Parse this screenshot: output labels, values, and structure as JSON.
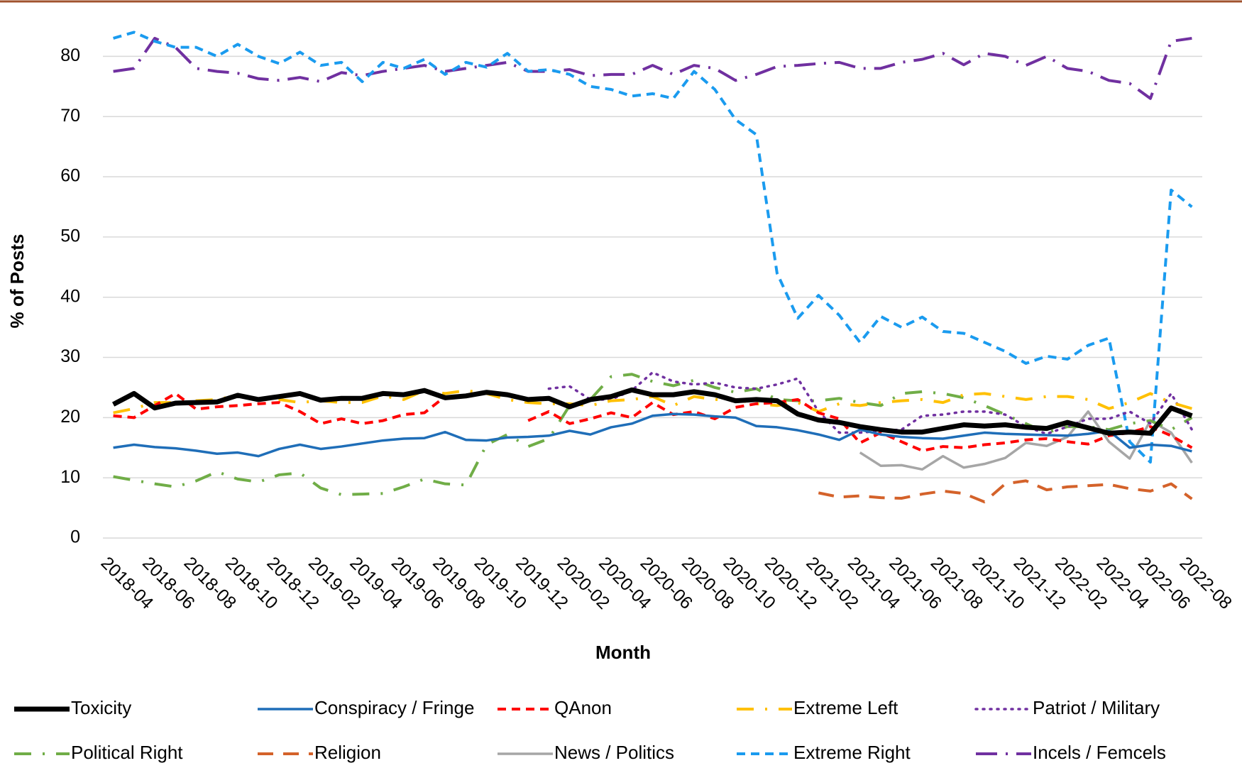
{
  "chart_data": {
    "type": "line",
    "x_label": "Month",
    "y_label": "% of Posts",
    "categories": [
      "2018-04",
      null,
      "2018-06",
      null,
      "2018-08",
      null,
      "2018-10",
      null,
      "2018-12",
      null,
      "2019-02",
      null,
      "2019-04",
      null,
      "2019-06",
      null,
      "2019-08",
      null,
      "2019-10",
      null,
      "2019-12",
      null,
      "2020-02",
      null,
      "2020-04",
      null,
      "2020-06",
      null,
      "2020-08",
      null,
      "2020-10",
      null,
      "2020-12",
      null,
      "2021-02",
      null,
      "2021-04",
      null,
      "2021-06",
      null,
      "2021-08",
      null,
      "2021-10",
      null,
      "2021-12",
      null,
      "2022-02",
      null,
      "2022-04",
      null,
      "2022-06",
      null,
      "2022-08"
    ],
    "ylim": [
      0,
      87
    ],
    "yticks": [
      0,
      10,
      20,
      30,
      40,
      50,
      60,
      70,
      80
    ],
    "grid": true,
    "legend": "bottom",
    "series": [
      {
        "name": "Toxicity",
        "color": "#000000",
        "dash": "thick",
        "values": [
          22.2,
          24,
          21.6,
          22.4,
          22.5,
          22.6,
          23.7,
          23,
          23.5,
          24,
          22.9,
          23.2,
          23.2,
          24,
          23.8,
          24.5,
          23.3,
          23.6,
          24.2,
          23.8,
          23,
          23.2,
          21.8,
          23,
          23.5,
          24.6,
          23.8,
          23.8,
          24.3,
          23.8,
          22.8,
          23,
          22.8,
          20.6,
          19.6,
          19.2,
          18.5,
          18,
          17.6,
          17.6,
          18.2,
          18.8,
          18.6,
          18.8,
          18.4,
          18.2,
          19.2,
          18.3,
          17.4,
          17.6,
          17.4,
          21.6,
          20.3
        ]
      },
      {
        "name": "Conspiracy / Fringe",
        "color": "#1f6eb8",
        "dash": "solid",
        "values": [
          15,
          15.5,
          15.1,
          14.9,
          14.5,
          14,
          14.2,
          13.6,
          14.8,
          15.5,
          14.8,
          15.2,
          15.7,
          16.2,
          16.5,
          16.6,
          17.6,
          16.3,
          16.2,
          16.7,
          16.8,
          17,
          17.8,
          17.2,
          18.4,
          19,
          20.3,
          20.6,
          20.5,
          20.2,
          20,
          18.6,
          18.4,
          17.9,
          17.2,
          16.3,
          18,
          17.2,
          16.8,
          16.6,
          16.5,
          17,
          17.5,
          17.3,
          17.2,
          17.1,
          17,
          17.3,
          17.8,
          15,
          15.5,
          15.3,
          14.4
        ]
      },
      {
        "name": "QAnon",
        "color": "#ff0000",
        "dash": "dashed",
        "values": [
          20.3,
          20,
          22,
          24,
          21.4,
          21.8,
          22,
          22.3,
          22.5,
          21,
          19,
          19.8,
          19,
          19.5,
          20.5,
          20.8,
          23.5,
          null,
          null,
          null,
          19.5,
          21,
          19,
          19.8,
          20.8,
          20,
          22.5,
          20.5,
          21,
          19.8,
          21.7,
          22.3,
          22.5,
          23,
          20.8,
          19.8,
          15.8,
          17.5,
          16,
          14.5,
          15.2,
          15,
          15.5,
          15.8,
          16.3,
          16.5,
          16,
          15.6,
          17,
          17.5,
          18.5,
          17,
          15
        ]
      },
      {
        "name": "Extreme Left",
        "color": "#ffc000",
        "dash": "dashdot",
        "values": [
          20.8,
          21.5,
          22.5,
          22.5,
          22.8,
          23,
          23.7,
          23,
          23,
          22.5,
          22.8,
          22.5,
          22.5,
          23.6,
          23,
          24.5,
          24,
          24.5,
          24,
          23,
          22.5,
          22.3,
          22.3,
          22,
          22.8,
          23,
          23.5,
          22,
          23.5,
          23,
          23,
          22.3,
          22,
          22.5,
          21,
          22.3,
          22,
          22.5,
          22.8,
          23,
          22.5,
          23.8,
          24,
          23.5,
          23,
          23.5,
          23.5,
          23,
          21.5,
          22.5,
          24,
          22.5,
          21.5
        ]
      },
      {
        "name": "Patriot / Military",
        "color": "#7030a0",
        "dash": "dotted",
        "values": [
          null,
          null,
          null,
          null,
          null,
          null,
          null,
          null,
          null,
          null,
          null,
          null,
          null,
          null,
          null,
          null,
          null,
          null,
          null,
          null,
          null,
          24.8,
          25.2,
          23,
          23,
          24.5,
          27.5,
          26,
          25.5,
          25.8,
          25,
          24.8,
          25.5,
          26.5,
          21,
          17.5,
          17.5,
          17.8,
          18,
          20.3,
          20.5,
          21,
          21,
          20.5,
          18.5,
          17.3,
          18.5,
          19.8,
          19.8,
          21,
          19,
          24,
          18
        ]
      },
      {
        "name": "Political Right",
        "color": "#70ad47",
        "dash": "dashdot",
        "values": [
          10.2,
          9.6,
          9,
          8.5,
          9.5,
          11,
          9.8,
          9.3,
          10.5,
          10.8,
          8.3,
          7.2,
          7.3,
          7.4,
          8.5,
          9.8,
          9,
          8.8,
          15.5,
          17.2,
          15.2,
          16.5,
          22,
          23,
          26.8,
          27.2,
          26,
          25.3,
          26.2,
          25,
          24.2,
          24.8,
          23,
          22.8,
          22.8,
          23.2,
          22.5,
          22,
          24,
          24.3,
          24,
          23.3,
          22,
          20.5,
          19,
          17.5,
          18.5,
          18.5,
          18,
          19,
          19.5,
          18,
          20
        ]
      },
      {
        "name": "Religion",
        "color": "#d4622a",
        "dash": "longdash",
        "values": [
          null,
          null,
          null,
          null,
          null,
          null,
          null,
          null,
          null,
          null,
          null,
          null,
          null,
          null,
          null,
          null,
          null,
          null,
          null,
          null,
          null,
          null,
          null,
          null,
          null,
          null,
          null,
          null,
          null,
          null,
          null,
          null,
          null,
          null,
          7.5,
          6.8,
          7,
          6.7,
          6.6,
          7.3,
          7.8,
          7.4,
          6,
          9,
          9.5,
          8,
          8.5,
          8.7,
          8.9,
          8.2,
          7.8,
          9,
          6.5
        ]
      },
      {
        "name": "News / Politics",
        "color": "#a6a6a6",
        "dash": "solid",
        "values": [
          null,
          null,
          null,
          null,
          null,
          null,
          null,
          null,
          null,
          null,
          null,
          null,
          null,
          null,
          null,
          null,
          null,
          null,
          null,
          null,
          null,
          null,
          null,
          null,
          null,
          null,
          null,
          null,
          null,
          null,
          null,
          null,
          null,
          null,
          null,
          null,
          14.2,
          12,
          12.1,
          11.4,
          13.6,
          11.7,
          12.3,
          13.3,
          15.8,
          15.3,
          16.8,
          21,
          16,
          13.2,
          19.5,
          17.5,
          12.5
        ]
      },
      {
        "name": "Extreme Right",
        "color": "#1a9bef",
        "dash": "dashed",
        "values": [
          83,
          84,
          82.5,
          81.5,
          81.5,
          80,
          82,
          80,
          78.8,
          80.7,
          78.5,
          79,
          75.8,
          79,
          78,
          79.5,
          77,
          79,
          78.2,
          80.5,
          77.5,
          77.8,
          77,
          75,
          74.5,
          73.4,
          73.8,
          73,
          77.5,
          74.5,
          69.5,
          67,
          44,
          36.5,
          40.3,
          37,
          32.5,
          36.8,
          35,
          36.7,
          34.3,
          34,
          32.5,
          31,
          29,
          30.2,
          29.7,
          32,
          33.2,
          16,
          12.6,
          57.8,
          55
        ]
      },
      {
        "name": "Incels / Femcels",
        "color": "#7030a0",
        "dash": "longdashdot",
        "values": [
          77.5,
          78,
          83,
          81.5,
          78,
          77.5,
          77.2,
          76.3,
          76,
          76.5,
          75.8,
          77.3,
          76.8,
          77.5,
          78,
          78.5,
          77.5,
          78,
          78.5,
          79,
          77.5,
          77.5,
          77.8,
          76.8,
          77,
          77,
          78.5,
          77,
          78.5,
          78,
          76,
          77,
          78.3,
          78.5,
          78.8,
          79,
          78,
          78,
          79,
          79.5,
          80.5,
          78.6,
          80.5,
          80,
          78.5,
          80,
          78,
          77.5,
          76,
          75.5,
          73,
          82.5,
          83
        ]
      }
    ]
  }
}
